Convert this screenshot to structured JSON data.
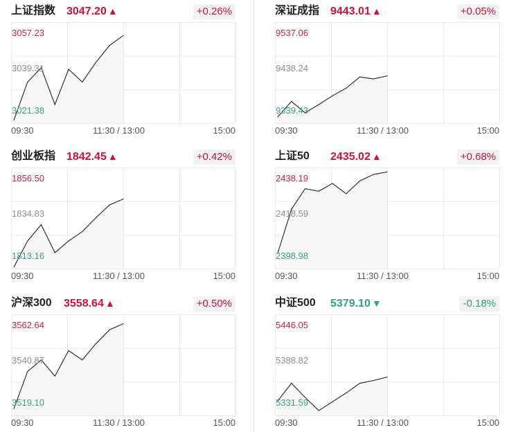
{
  "colors": {
    "up": "#d0103a",
    "down": "#2fa37c",
    "line": "#333333",
    "grid": "#e8e8e8",
    "fill": "#f6f6f6"
  },
  "x_axis": {
    "start": "09:30",
    "mid": "11:30 / 13:00",
    "end": "15:00"
  },
  "chart_data": [
    {
      "type": "line",
      "name": "上证指数",
      "price": "3047.20",
      "arrow": "▲",
      "direction": "up",
      "change": "+0.26%",
      "y_high": "3057.23",
      "y_mid": "3039.31",
      "y_low": "3021.38",
      "ylim": [
        3021.38,
        3057.23
      ],
      "x": [
        "09:30",
        "09:45",
        "10:00",
        "10:15",
        "10:30",
        "10:45",
        "11:00",
        "11:15",
        "11:30"
      ],
      "values": [
        3022.5,
        3036.0,
        3041.0,
        3028.0,
        3040.5,
        3036.0,
        3043.0,
        3049.0,
        3052.5
      ]
    },
    {
      "type": "line",
      "name": "深证成指",
      "price": "9443.01",
      "arrow": "▲",
      "direction": "up",
      "change": "+0.05%",
      "y_high": "9537.06",
      "y_mid": "9438.24",
      "y_low": "9339.43",
      "ylim": [
        9339.43,
        9537.06
      ],
      "x": [
        "09:30",
        "09:45",
        "10:00",
        "10:15",
        "10:30",
        "10:45",
        "11:00",
        "11:15",
        "11:30"
      ],
      "values": [
        9352.0,
        9382.0,
        9360.0,
        9376.0,
        9393.0,
        9408.0,
        9430.0,
        9426.0,
        9432.0
      ]
    },
    {
      "type": "line",
      "name": "创业板指",
      "price": "1842.45",
      "arrow": "▲",
      "direction": "up",
      "change": "+0.42%",
      "y_high": "1856.50",
      "y_mid": "1834.83",
      "y_low": "1813.16",
      "ylim": [
        1813.16,
        1856.5
      ],
      "x": [
        "09:30",
        "09:45",
        "10:00",
        "10:15",
        "10:30",
        "10:45",
        "11:00",
        "11:15",
        "11:30"
      ],
      "values": [
        1813.8,
        1825.0,
        1832.0,
        1820.0,
        1825.0,
        1829.0,
        1835.0,
        1840.5,
        1843.0
      ]
    },
    {
      "type": "line",
      "name": "上证50",
      "price": "2435.02",
      "arrow": "▲",
      "direction": "up",
      "change": "+0.68%",
      "y_high": "2438.19",
      "y_mid": "2418.59",
      "y_low": "2398.98",
      "ylim": [
        2398.98,
        2438.19
      ],
      "x": [
        "09:30",
        "09:45",
        "10:00",
        "10:15",
        "10:30",
        "10:45",
        "11:00",
        "11:15",
        "11:30"
      ],
      "values": [
        2405.0,
        2422.0,
        2430.0,
        2429.0,
        2432.0,
        2428.0,
        2433.0,
        2435.5,
        2436.5
      ]
    },
    {
      "type": "line",
      "name": "沪深300",
      "price": "3558.64",
      "arrow": "▲",
      "direction": "up",
      "change": "+0.50%",
      "y_high": "3562.64",
      "y_mid": "3540.87",
      "y_low": "3519.10",
      "ylim": [
        3519.1,
        3562.64
      ],
      "x": [
        "09:30",
        "09:45",
        "10:00",
        "10:15",
        "10:30",
        "10:45",
        "11:00",
        "11:15",
        "11:30"
      ],
      "values": [
        3522.0,
        3538.0,
        3543.0,
        3536.0,
        3547.0,
        3543.0,
        3550.0,
        3556.0,
        3558.6
      ]
    },
    {
      "type": "line",
      "name": "中证500",
      "price": "5379.10",
      "arrow": "▼",
      "direction": "down",
      "change": "-0.18%",
      "y_high": "5446.05",
      "y_mid": "5388.82",
      "y_low": "5331.59",
      "ylim": [
        5331.59,
        5446.05
      ],
      "x": [
        "09:30",
        "09:45",
        "10:00",
        "10:15",
        "10:30",
        "10:45",
        "11:00",
        "11:15",
        "11:30"
      ],
      "values": [
        5348.0,
        5368.0,
        5352.0,
        5337.0,
        5347.0,
        5357.0,
        5368.0,
        5371.0,
        5375.0
      ]
    }
  ]
}
